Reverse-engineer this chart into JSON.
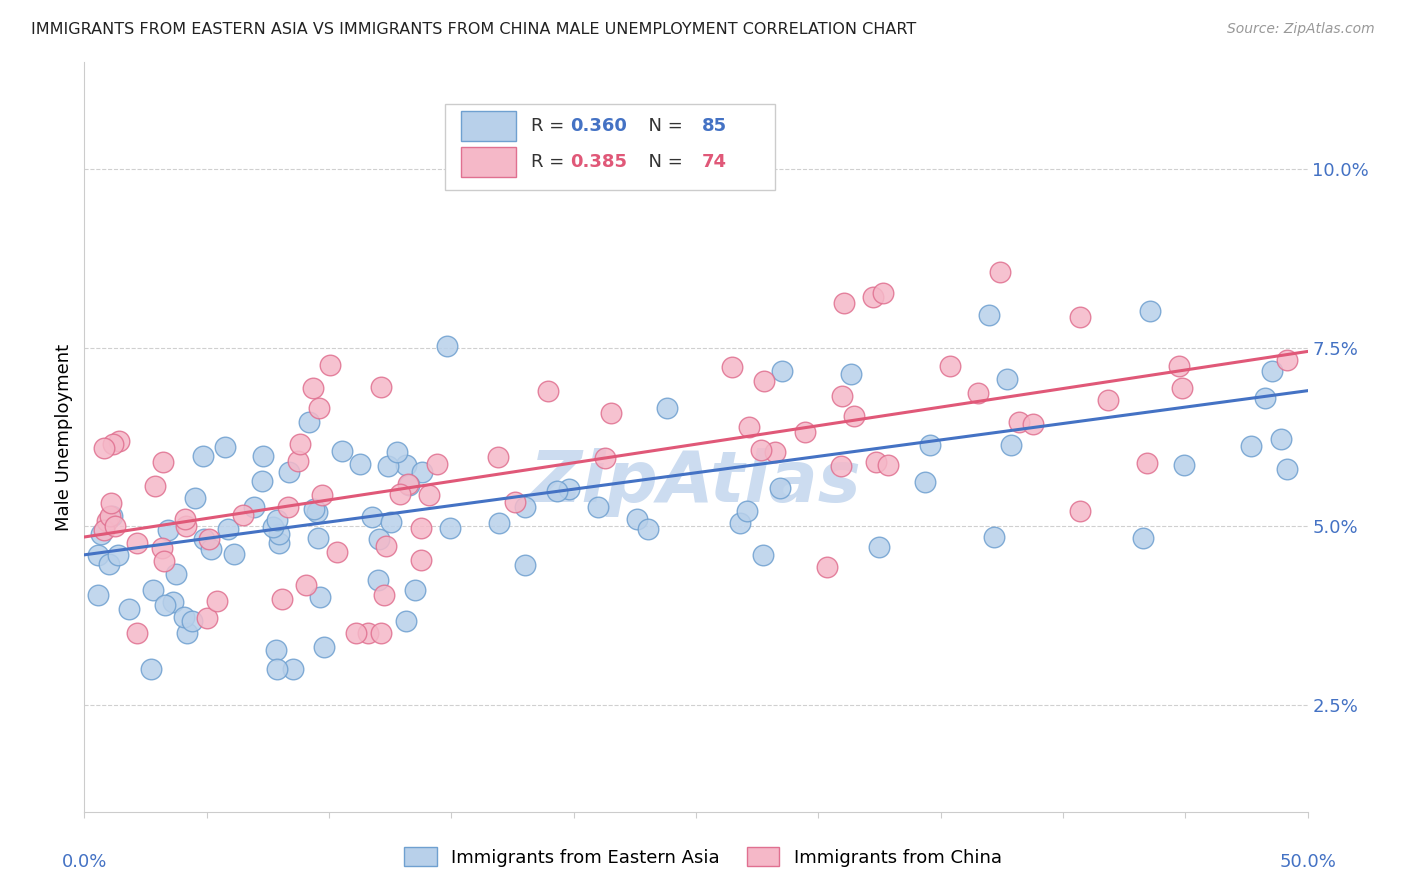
{
  "title": "IMMIGRANTS FROM EASTERN ASIA VS IMMIGRANTS FROM CHINA MALE UNEMPLOYMENT CORRELATION CHART",
  "source": "Source: ZipAtlas.com",
  "ylabel": "Male Unemployment",
  "ytick_labels": [
    "2.5%",
    "5.0%",
    "7.5%",
    "10.0%"
  ],
  "ytick_values": [
    0.025,
    0.05,
    0.075,
    0.1
  ],
  "xlim": [
    0.0,
    0.5
  ],
  "ylim": [
    0.01,
    0.115
  ],
  "r_eastern_asia": 0.36,
  "n_eastern_asia": 85,
  "r_china": 0.385,
  "n_china": 74,
  "color_eastern_asia_fill": "#b8d0ea",
  "color_eastern_asia_edge": "#6fa0d0",
  "color_china_fill": "#f5b8c8",
  "color_china_edge": "#e07090",
  "line_color_eastern_asia": "#4472c4",
  "line_color_china": "#e05878",
  "tick_color": "#4472c4",
  "grid_color": "#d0d0d0",
  "watermark_color": "#ccdcf0",
  "line_intercept_ea": 0.046,
  "line_slope_ea": 0.046,
  "line_intercept_ch": 0.0485,
  "line_slope_ch": 0.052
}
